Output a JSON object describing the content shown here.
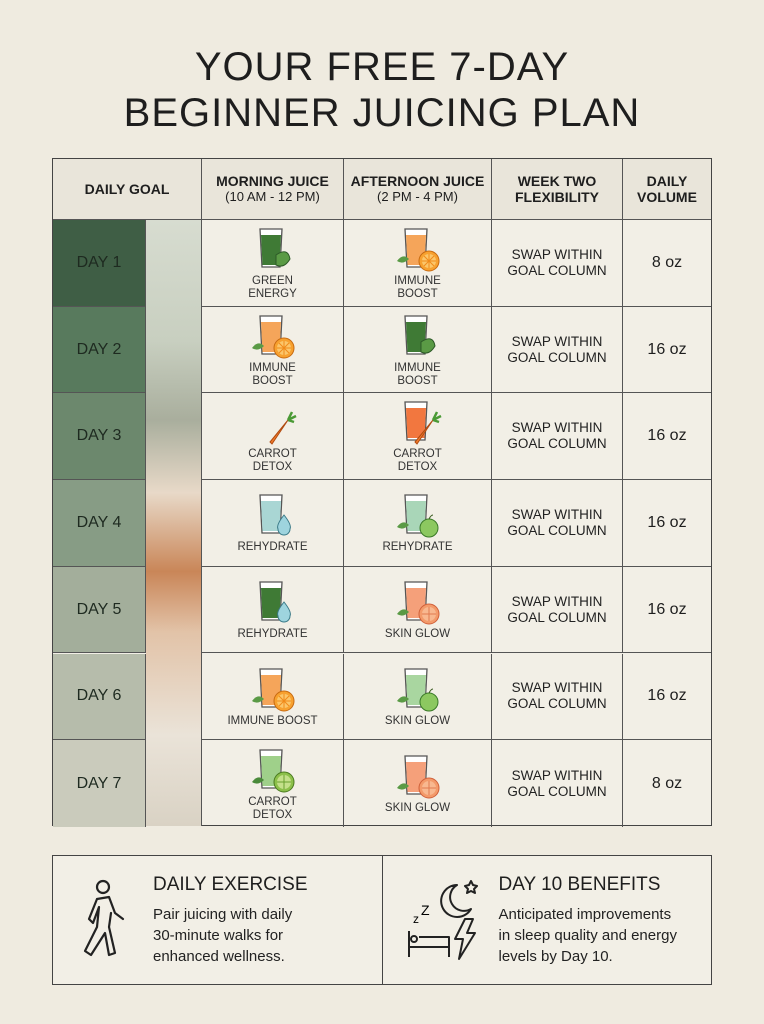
{
  "title": [
    "YOUR FREE 7-DAY",
    "BEGINNER JUICING PLAN"
  ],
  "headers": {
    "goal": "DAILY GOAL",
    "morning": "MORNING JUICE",
    "morning_time": "(10 AM - 12 PM)",
    "afternoon": "AFTERNOON JUICE",
    "afternoon_time": "(2 PM - 4 PM)",
    "week_two": [
      "WEEK TWO",
      "FLEXIBILITY"
    ],
    "volume": [
      "DAILY",
      "VOLUME"
    ]
  },
  "day_colors": [
    "#3f5e45",
    "#587a5d",
    "#6c886d",
    "#879c85",
    "#a3ae9b",
    "#b6bcab",
    "#cacbbc"
  ],
  "rows": [
    {
      "day": "DAY 1",
      "morning": {
        "label": [
          "GREEN",
          "ENERGY"
        ],
        "glass": "#3f7a35",
        "garnish": "leaf"
      },
      "afternoon": {
        "label": [
          "IMMUNE",
          "BOOST"
        ],
        "glass": "#f5a55a",
        "garnish": "orange"
      },
      "swap": [
        "SWAP WITHIN",
        "GOAL COLUMN"
      ],
      "volume": "8 oz"
    },
    {
      "day": "DAY 2",
      "morning": {
        "label": [
          "IMMUNE",
          "BOOST"
        ],
        "glass": "#f5a55a",
        "garnish": "orange"
      },
      "afternoon": {
        "label": [
          "IMMUNE",
          "BOOST"
        ],
        "glass": "#3f7a35",
        "garnish": "leaf"
      },
      "swap": [
        "SWAP WITHIN",
        "GOAL COLUMN"
      ],
      "volume": "16 oz"
    },
    {
      "day": "DAY 3",
      "morning": {
        "label": [
          "CARROT",
          "DETOX"
        ],
        "glass": "",
        "garnish": "carrot"
      },
      "afternoon": {
        "label": [
          "CARROT",
          "DETOX"
        ],
        "glass": "#f2773f",
        "garnish": "carrot"
      },
      "swap": [
        "SWAP WITHIN",
        "GOAL COLUMN"
      ],
      "volume": "16 oz"
    },
    {
      "day": "DAY 4",
      "morning": {
        "label": [
          "REHYDRATE"
        ],
        "glass": "#a9d6d4",
        "garnish": "droplet"
      },
      "afternoon": {
        "label": [
          "REHYDRATE"
        ],
        "glass": "#a9d6b8",
        "garnish": "apple"
      },
      "swap": [
        "SWAP WITHIN",
        "GOAL COLUMN"
      ],
      "volume": "16 oz"
    },
    {
      "day": "DAY 5",
      "morning": {
        "label": [
          "REHYDRATE"
        ],
        "glass": "#3f7a35",
        "garnish": "droplet"
      },
      "afternoon": {
        "label": [
          "SKIN GLOW"
        ],
        "glass": "#f5a07a",
        "garnish": "grapefruit"
      },
      "swap": [
        "SWAP WITHIN",
        "GOAL COLUMN"
      ],
      "volume": "16 oz"
    },
    {
      "day": "DAY 6",
      "morning": {
        "label": [
          "IMMUNE BOOST"
        ],
        "glass": "#f5a55a",
        "garnish": "orange"
      },
      "afternoon": {
        "label": [
          "SKIN GLOW"
        ],
        "glass": "#a9d6a0",
        "garnish": "apple"
      },
      "swap": [
        "SWAP WITHIN",
        "GOAL COLUMN"
      ],
      "volume": "16 oz"
    },
    {
      "day": "DAY 7",
      "morning": {
        "label": [
          "CARROT",
          "DETOX"
        ],
        "glass": "#9fd08a",
        "garnish": "lime"
      },
      "afternoon": {
        "label": [
          "SKIN GLOW"
        ],
        "glass": "#f5a07a",
        "garnish": "grapefruit"
      },
      "swap": [
        "SWAP WITHIN",
        "GOAL COLUMN"
      ],
      "volume": "8 oz"
    }
  ],
  "exercise": {
    "title": "DAILY EXERCISE",
    "text": [
      "Pair juicing with daily",
      "30-minute walks for",
      "enhanced wellness."
    ],
    "icon": "walking-person-icon"
  },
  "benefits": {
    "title": "DAY 10 BENEFITS",
    "text": [
      "Anticipated improvements",
      "in sleep quality and energy",
      "levels by Day 10."
    ],
    "icon": "sleep-energy-icon"
  }
}
